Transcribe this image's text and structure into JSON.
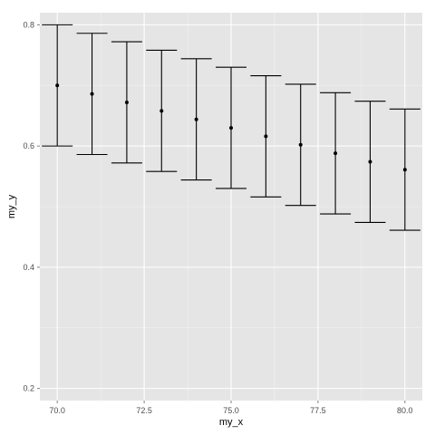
{
  "chart_data": {
    "type": "scatter",
    "xlabel": "my_x",
    "ylabel": "my_y",
    "xlim": [
      69.5,
      80.5
    ],
    "ylim": [
      0.18,
      0.82
    ],
    "x_ticks": [
      70.0,
      72.5,
      75.0,
      77.5,
      80.0
    ],
    "x_tick_labels": [
      "70.0",
      "72.5",
      "75.0",
      "77.5",
      "80.0"
    ],
    "y_ticks": [
      0.2,
      0.4,
      0.6,
      0.8
    ],
    "y_tick_labels": [
      "0.2",
      "0.4",
      "0.6",
      "0.8"
    ],
    "grid": true,
    "background": "#e5e5e5",
    "grid_major_color": "#ffffff",
    "grid_minor_color": "#f2f2f2",
    "point_color": "#000000",
    "series": [
      {
        "x": [
          70,
          71,
          72,
          73,
          74,
          75,
          76,
          77,
          78,
          79,
          80
        ],
        "y": [
          0.7,
          0.686,
          0.672,
          0.658,
          0.644,
          0.63,
          0.616,
          0.602,
          0.588,
          0.574,
          0.561
        ],
        "ymin": [
          0.6,
          0.586,
          0.572,
          0.558,
          0.544,
          0.53,
          0.516,
          0.502,
          0.488,
          0.474,
          0.461
        ],
        "ymax": [
          0.8,
          0.786,
          0.772,
          0.758,
          0.744,
          0.73,
          0.716,
          0.702,
          0.688,
          0.674,
          0.661
        ]
      }
    ]
  }
}
